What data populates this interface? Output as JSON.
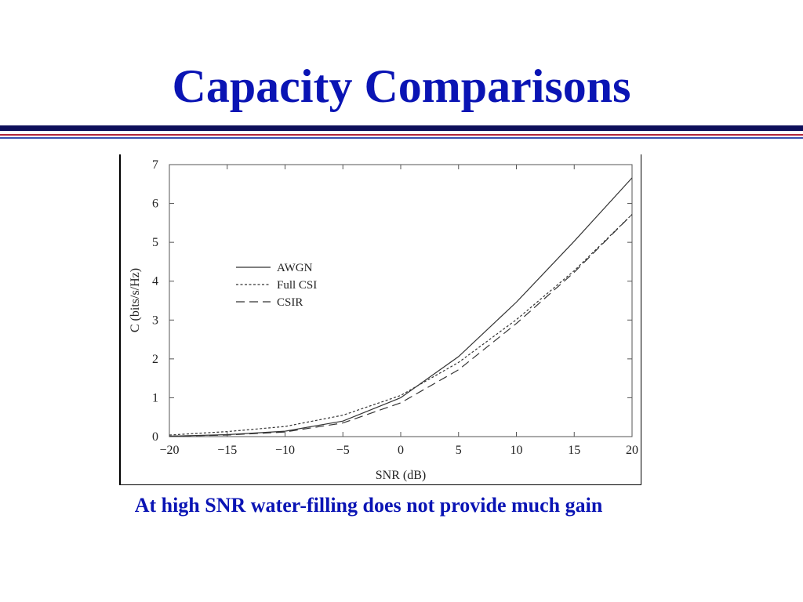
{
  "slide": {
    "title": "Capacity Comparisons",
    "caption": "At high SNR water-filling does not provide much gain"
  },
  "colors": {
    "title": "#0a14b4",
    "rule_navy": "#0d0f5a",
    "rule_red": "#b3263a"
  },
  "chart_data": {
    "type": "line",
    "xlabel": "SNR (dB)",
    "ylabel": "C (bits/s/Hz)",
    "xlim": [
      -20,
      20
    ],
    "ylim": [
      0,
      7
    ],
    "xticks": [
      -20,
      -15,
      -10,
      -5,
      0,
      5,
      10,
      15,
      20
    ],
    "xtick_labels": [
      "−20",
      "−15",
      "−10",
      "−5",
      "0",
      "5",
      "10",
      "15",
      "20"
    ],
    "yticks": [
      0,
      1,
      2,
      3,
      4,
      5,
      6,
      7
    ],
    "ytick_labels": [
      "0",
      "1",
      "2",
      "3",
      "4",
      "5",
      "6",
      "7"
    ],
    "grid": false,
    "legend_position": "upper-left",
    "series": [
      {
        "name": "AWGN",
        "style": "solid",
        "x": [
          -20,
          -15,
          -10,
          -5,
          0,
          5,
          10,
          15,
          20
        ],
        "y": [
          0.01,
          0.05,
          0.14,
          0.4,
          1.0,
          2.06,
          3.46,
          5.03,
          6.66
        ]
      },
      {
        "name": "Full CSI",
        "style": "dotted",
        "x": [
          -20,
          -15,
          -10,
          -5,
          0,
          5,
          10,
          15,
          20
        ],
        "y": [
          0.04,
          0.13,
          0.26,
          0.55,
          1.06,
          1.91,
          3.01,
          4.27,
          5.72
        ]
      },
      {
        "name": "CSIR",
        "style": "dashed",
        "x": [
          -20,
          -15,
          -10,
          -5,
          0,
          5,
          10,
          15,
          20
        ],
        "y": [
          0.01,
          0.04,
          0.12,
          0.35,
          0.87,
          1.72,
          2.91,
          4.23,
          5.72
        ]
      }
    ]
  }
}
